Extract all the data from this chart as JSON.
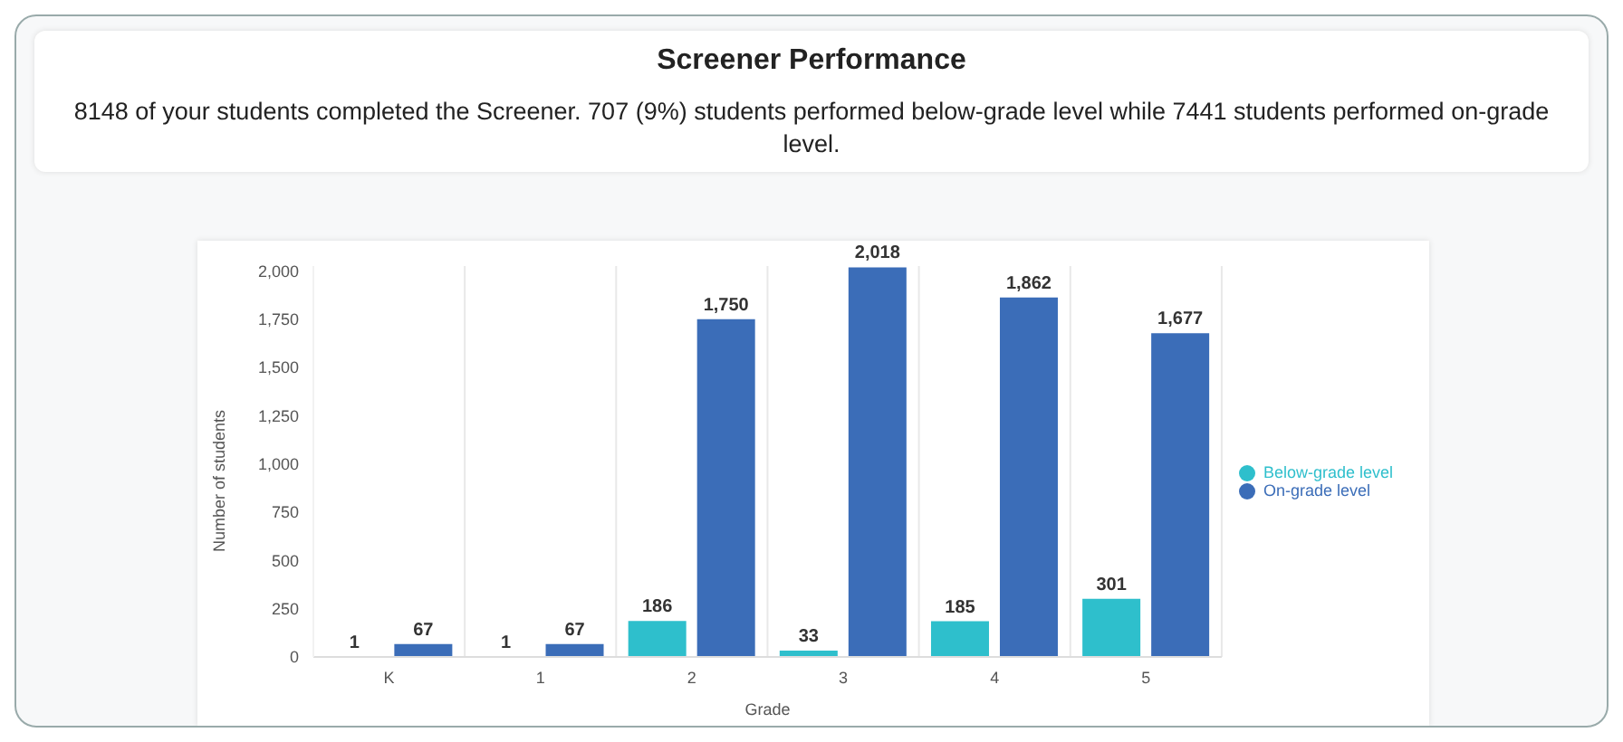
{
  "chart_data": {
    "type": "bar",
    "title": "Screener Performance",
    "subtitle": "8148 of your students completed the Screener. 707 (9%) students performed below-grade level while 7441 students performed on-grade level.",
    "xlabel": "Grade",
    "ylabel": "Number of students",
    "categories": [
      "K",
      "1",
      "2",
      "3",
      "4",
      "5"
    ],
    "series": [
      {
        "name": "Below-grade level",
        "color": "#2ebfcc",
        "values": [
          1,
          1,
          186,
          33,
          185,
          301
        ],
        "value_labels": [
          "1",
          "1",
          "186",
          "33",
          "185",
          "301"
        ]
      },
      {
        "name": "On-grade level",
        "color": "#3b6db8",
        "values": [
          67,
          67,
          1750,
          2018,
          1862,
          1677
        ],
        "value_labels": [
          "67",
          "67",
          "1,750",
          "2,018",
          "1,862",
          "1,677"
        ]
      }
    ],
    "ylim": [
      0,
      2025
    ],
    "yticks": [
      {
        "value": 0,
        "label": "0"
      },
      {
        "value": 250,
        "label": "250"
      },
      {
        "value": 500,
        "label": "500"
      },
      {
        "value": 750,
        "label": "750"
      },
      {
        "value": 1000,
        "label": "1,000"
      },
      {
        "value": 1250,
        "label": "1,250"
      },
      {
        "value": 1500,
        "label": "1,500"
      },
      {
        "value": 1750,
        "label": "1,750"
      },
      {
        "value": 2000,
        "label": "2,000"
      }
    ],
    "grid": "x",
    "legend": "right"
  }
}
